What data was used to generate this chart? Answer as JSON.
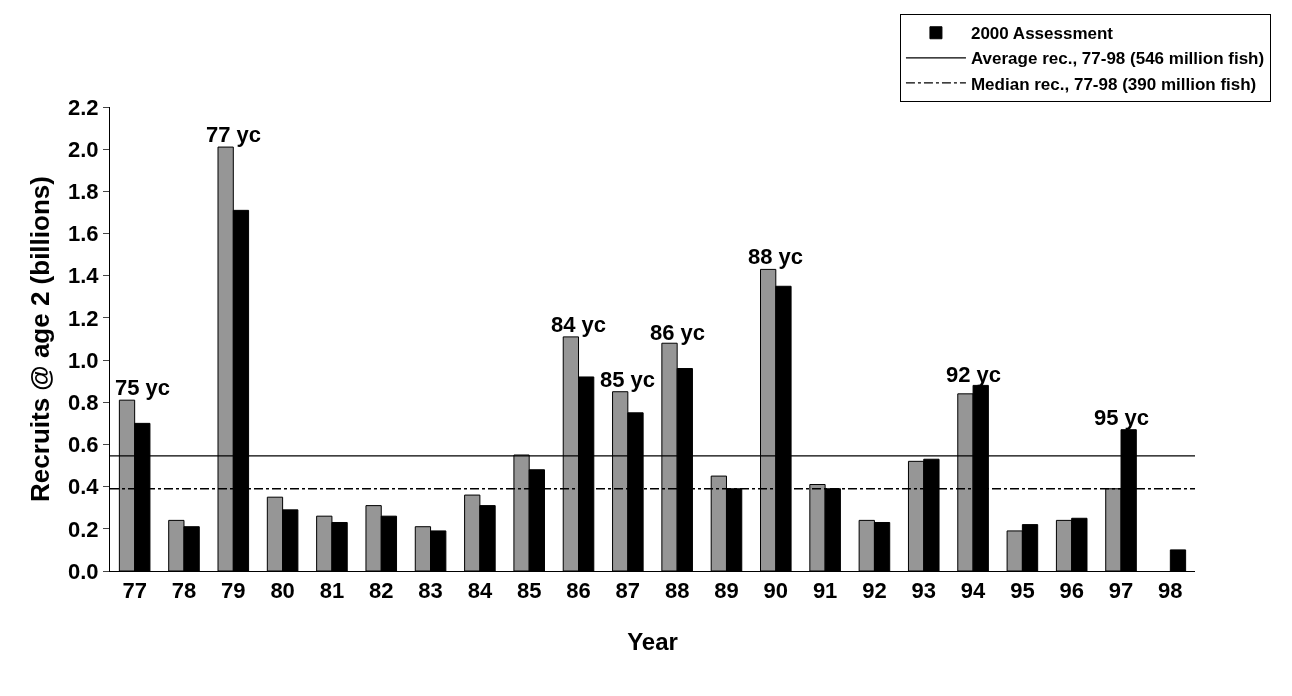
{
  "chart_data": {
    "type": "bar",
    "xlabel": "Year",
    "ylabel": "Recruits @ age 2 (billions)",
    "categories": [
      "77",
      "78",
      "79",
      "80",
      "81",
      "82",
      "83",
      "84",
      "85",
      "86",
      "87",
      "88",
      "89",
      "90",
      "91",
      "92",
      "93",
      "94",
      "95",
      "96",
      "97",
      "98"
    ],
    "series": [
      {
        "color": "#969696",
        "values": [
          0.81,
          0.24,
          2.01,
          0.35,
          0.26,
          0.31,
          0.21,
          0.36,
          0.55,
          1.11,
          0.85,
          1.08,
          0.45,
          1.43,
          0.41,
          0.24,
          0.52,
          0.84,
          0.19,
          0.24,
          0.39,
          null
        ]
      },
      {
        "name": "2000 Assessment",
        "color": "#000000",
        "values": [
          0.7,
          0.21,
          1.71,
          0.29,
          0.23,
          0.26,
          0.19,
          0.31,
          0.48,
          0.92,
          0.75,
          0.96,
          0.39,
          1.35,
          0.39,
          0.23,
          0.53,
          0.88,
          0.22,
          0.25,
          0.67,
          0.1
        ]
      }
    ],
    "ylim": [
      0,
      2.2
    ],
    "yticks": [
      {
        "value": 0,
        "label": "0.0"
      },
      {
        "value": 0.2,
        "label": "0.2"
      },
      {
        "value": 0.4,
        "label": "0.4"
      },
      {
        "value": 0.6,
        "label": "0.6"
      },
      {
        "value": 0.8,
        "label": "0.8"
      },
      {
        "value": 1.0,
        "label": "1.0"
      },
      {
        "value": 1.2,
        "label": "1.2"
      },
      {
        "value": 1.4,
        "label": "1.4"
      },
      {
        "value": 1.6,
        "label": "1.6"
      },
      {
        "value": 1.8,
        "label": "1.8"
      },
      {
        "value": 2.0,
        "label": "2.0"
      },
      {
        "value": 2.2,
        "label": "2.2"
      }
    ],
    "ref_lines": [
      {
        "axis": "y",
        "value": 0.546,
        "label": "Average rec., 77-98 (546 million fish)",
        "color": "#000000",
        "line_style": "solid"
      },
      {
        "axis": "y",
        "value": 0.39,
        "label": "Median rec., 77-98 (390 million fish)",
        "color": "#000000",
        "line_style": "dashdot"
      }
    ],
    "annotations": [
      {
        "text": "75 yc",
        "x": "77",
        "y": 0.82
      },
      {
        "text": "77 yc",
        "x": "79",
        "y": 2.02
      },
      {
        "text": "84 yc",
        "x": "86",
        "y": 1.12
      },
      {
        "text": "85 yc",
        "x": "87",
        "y": 0.86
      },
      {
        "text": "86 yc",
        "x": "88",
        "y": 1.08
      },
      {
        "text": "88 yc",
        "x": "90",
        "y": 1.44
      },
      {
        "text": "92 yc",
        "x": "94",
        "y": 0.88
      },
      {
        "text": "95 yc",
        "x": "97",
        "y": 0.68
      }
    ],
    "legend": "top right"
  }
}
